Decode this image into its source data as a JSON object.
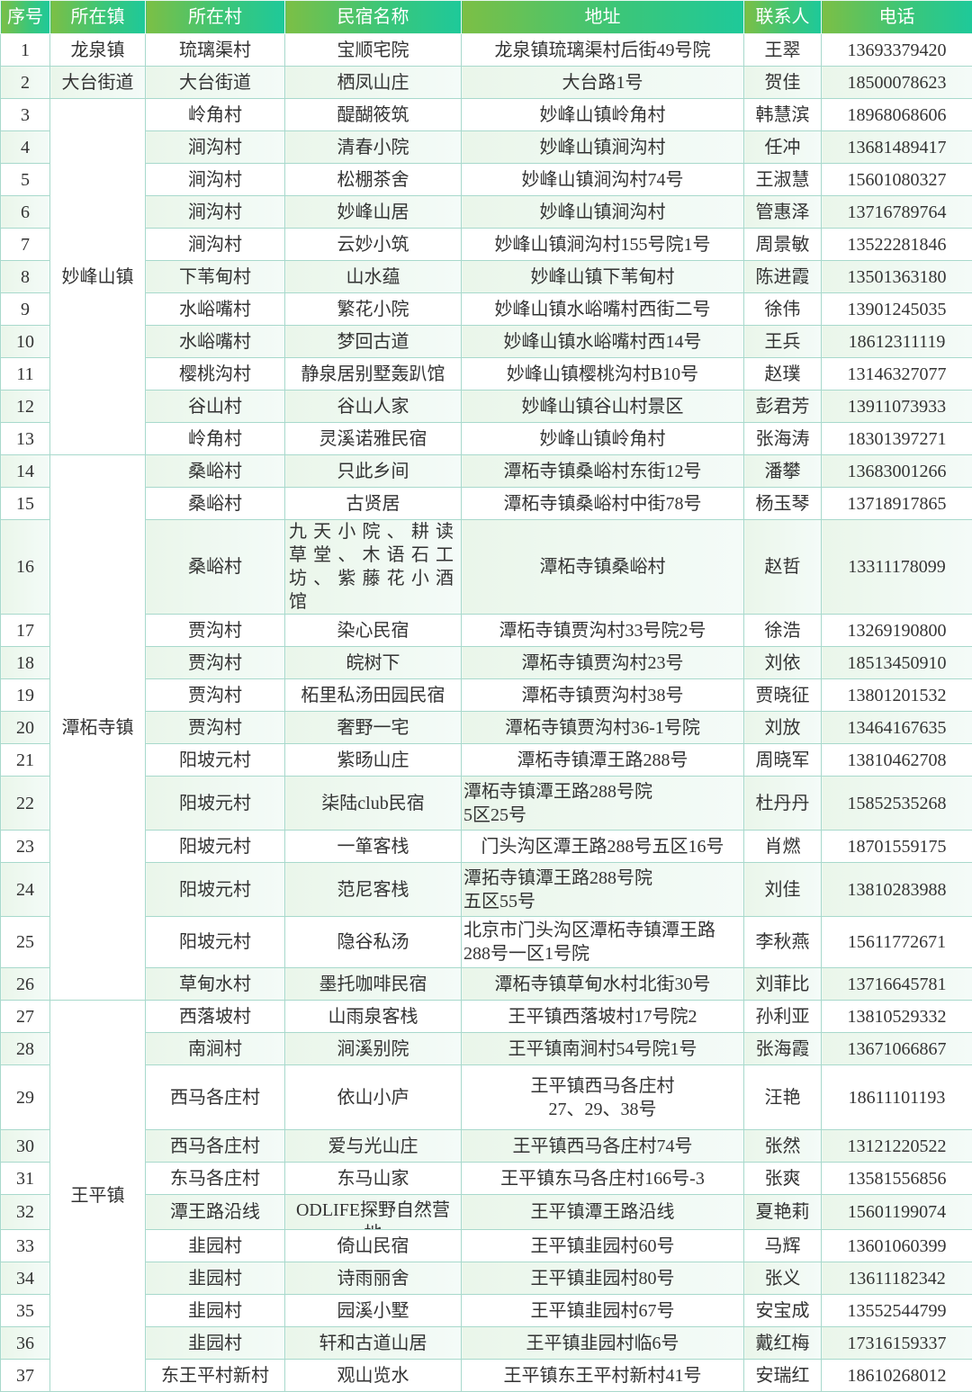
{
  "headers": [
    "序号",
    "所在镇",
    "所在村",
    "民宿名称",
    "地址",
    "联系人",
    "电话"
  ],
  "colors": {
    "header_start": "#7cbf45",
    "header_end": "#1ec99a",
    "stripe": "#eaf6ea",
    "border": "#a8d9cc"
  },
  "towns": [
    {
      "name": "龙泉镇",
      "rows": 1
    },
    {
      "name": "大台街道",
      "rows": 1
    },
    {
      "name": "妙峰山镇",
      "rows": 11
    },
    {
      "name": "潭柘寺镇",
      "rows": 13
    },
    {
      "name": "王平镇",
      "rows": 11
    }
  ],
  "rows": [
    {
      "no": "1",
      "village": "琉璃渠村",
      "name": "宝顺宅院",
      "address": "龙泉镇琉璃渠村后街49号院",
      "contact": "王翠",
      "phone": "13693379420"
    },
    {
      "no": "2",
      "village": "大台街道",
      "name": "栖凤山庄",
      "address": "大台路1号",
      "contact": "贺佳",
      "phone": "18500078623"
    },
    {
      "no": "3",
      "village": "岭角村",
      "name": "醍醐筱筑",
      "address": "妙峰山镇岭角村",
      "contact": "韩慧滨",
      "phone": "18968068606"
    },
    {
      "no": "4",
      "village": "涧沟村",
      "name": "清春小院",
      "address": "妙峰山镇涧沟村",
      "contact": "任冲",
      "phone": "13681489417"
    },
    {
      "no": "5",
      "village": "涧沟村",
      "name": "松棚茶舍",
      "address": "妙峰山镇涧沟村74号",
      "contact": "王淑慧",
      "phone": "15601080327"
    },
    {
      "no": "6",
      "village": "涧沟村",
      "name": "妙峰山居",
      "address": "妙峰山镇涧沟村",
      "contact": "管惠泽",
      "phone": "13716789764"
    },
    {
      "no": "7",
      "village": "涧沟村",
      "name": "云妙小筑",
      "address": "妙峰山镇涧沟村155号院1号",
      "contact": "周景敏",
      "phone": "13522281846"
    },
    {
      "no": "8",
      "village": "下苇甸村",
      "name": "山水蕴",
      "address": "妙峰山镇下苇甸村",
      "contact": "陈进霞",
      "phone": "13501363180"
    },
    {
      "no": "9",
      "village": "水峪嘴村",
      "name": "繁花小院",
      "address": "妙峰山镇水峪嘴村西街二号",
      "contact": "徐伟",
      "phone": "13901245035"
    },
    {
      "no": "10",
      "village": "水峪嘴村",
      "name": "梦回古道",
      "address": "妙峰山镇水峪嘴村西14号",
      "contact": "王兵",
      "phone": "18612311119"
    },
    {
      "no": "11",
      "village": "樱桃沟村",
      "name": "静泉居别墅轰趴馆",
      "address": "妙峰山镇樱桃沟村B10号",
      "contact": "赵璞",
      "phone": "13146327077"
    },
    {
      "no": "12",
      "village": "谷山村",
      "name": "谷山人家",
      "address": "妙峰山镇谷山村景区",
      "contact": "彭君芳",
      "phone": "13911073933"
    },
    {
      "no": "13",
      "village": "岭角村",
      "name": "灵溪诺雅民宿",
      "address": "妙峰山镇岭角村",
      "contact": "张海涛",
      "phone": "18301397271"
    },
    {
      "no": "14",
      "village": "桑峪村",
      "name": "只此乡间",
      "address": "潭柘寺镇桑峪村东街12号",
      "contact": "潘攀",
      "phone": "13683001266"
    },
    {
      "no": "15",
      "village": "桑峪村",
      "name": "古贤居",
      "address": "潭柘寺镇桑峪村中街78号",
      "contact": "杨玉琴",
      "phone": "13718917865"
    },
    {
      "no": "16",
      "village": "桑峪村",
      "name": "九天小院、耕读草堂、木语石工坊、紫藤花小酒馆",
      "address": "潭柘寺镇桑峪村",
      "contact": "赵哲",
      "phone": "13311178099"
    },
    {
      "no": "17",
      "village": "贾沟村",
      "name": "染心民宿",
      "address": "潭柘寺镇贾沟村33号院2号",
      "contact": "徐浩",
      "phone": "13269190800"
    },
    {
      "no": "18",
      "village": "贾沟村",
      "name": "皖树下",
      "address": "潭柘寺镇贾沟村23号",
      "contact": "刘依",
      "phone": "18513450910"
    },
    {
      "no": "19",
      "village": "贾沟村",
      "name": "柘里私汤田园民宿",
      "address": "潭柘寺镇贾沟村38号",
      "contact": "贾晓征",
      "phone": "13801201532"
    },
    {
      "no": "20",
      "village": "贾沟村",
      "name": "奢野一宅",
      "address": "潭柘寺镇贾沟村36-1号院",
      "contact": "刘放",
      "phone": "13464167635"
    },
    {
      "no": "21",
      "village": "阳坡元村",
      "name": "紫旸山庄",
      "address": "潭柘寺镇潭王路288号",
      "contact": "周晓军",
      "phone": "13810462708"
    },
    {
      "no": "22",
      "village": "阳坡元村",
      "name": "柒陆club民宿",
      "address": "潭柘寺镇潭王路288号院\n5区25号",
      "contact": "杜丹丹",
      "phone": "15852535268"
    },
    {
      "no": "23",
      "village": "阳坡元村",
      "name": "一箪客栈",
      "address": "门头沟区潭王路288号五区16号",
      "contact": "肖燃",
      "phone": "18701559175"
    },
    {
      "no": "24",
      "village": "阳坡元村",
      "name": "范尼客栈",
      "address": "潭拓寺镇潭王路288号院\n五区55号",
      "contact": "刘佳",
      "phone": "13810283988"
    },
    {
      "no": "25",
      "village": "阳坡元村",
      "name": "隐谷私汤",
      "address": "北京市门头沟区潭柘寺镇潭王路288号一区1号院",
      "contact": "李秋燕",
      "phone": "15611772671"
    },
    {
      "no": "26",
      "village": "草甸水村",
      "name": "墨托咖啡民宿",
      "address": "潭柘寺镇草甸水村北街30号",
      "contact": "刘菲比",
      "phone": "13716645781"
    },
    {
      "no": "27",
      "village": "西落坡村",
      "name": "山雨泉客栈",
      "address": "王平镇西落坡村17号院2",
      "contact": "孙利亚",
      "phone": "13810529332"
    },
    {
      "no": "28",
      "village": "南涧村",
      "name": "涧溪别院",
      "address": "王平镇南涧村54号院1号",
      "contact": "张海霞",
      "phone": "13671066867"
    },
    {
      "no": "29",
      "village": "西马各庄村",
      "name": "依山小庐",
      "address": "王平镇西马各庄村\n27、29、38号",
      "contact": "汪艳",
      "phone": "18611101193"
    },
    {
      "no": "30",
      "village": "西马各庄村",
      "name": "爱与光山庄",
      "address": "王平镇西马各庄村74号",
      "contact": "张然",
      "phone": "13121220522"
    },
    {
      "no": "31",
      "village": "东马各庄村",
      "name": "东马山家",
      "address": "王平镇东马各庄村166号-3",
      "contact": "张爽",
      "phone": "13581556856"
    },
    {
      "no": "32",
      "village": "潭王路沿线",
      "name": "ODLIFE探野自然营地",
      "address": "王平镇潭王路沿线",
      "contact": "夏艳莉",
      "phone": "15601199074"
    },
    {
      "no": "33",
      "village": "韭园村",
      "name": "倚山民宿",
      "address": "王平镇韭园村60号",
      "contact": "马辉",
      "phone": "13601060399"
    },
    {
      "no": "34",
      "village": "韭园村",
      "name": "诗雨丽舍",
      "address": "王平镇韭园村80号",
      "contact": "张义",
      "phone": "13611182342"
    },
    {
      "no": "35",
      "village": "韭园村",
      "name": "园溪小墅",
      "address": "王平镇韭园村67号",
      "contact": "安宝成",
      "phone": "13552544799"
    },
    {
      "no": "36",
      "village": "韭园村",
      "name": "轩和古道山居",
      "address": "王平镇韭园村临6号",
      "contact": "戴红梅",
      "phone": "17316159337"
    },
    {
      "no": "37",
      "village": "东王平村新村",
      "name": "观山览水",
      "address": "王平镇东王平村新村41号",
      "contact": "安瑞红",
      "phone": "18610268012"
    }
  ]
}
